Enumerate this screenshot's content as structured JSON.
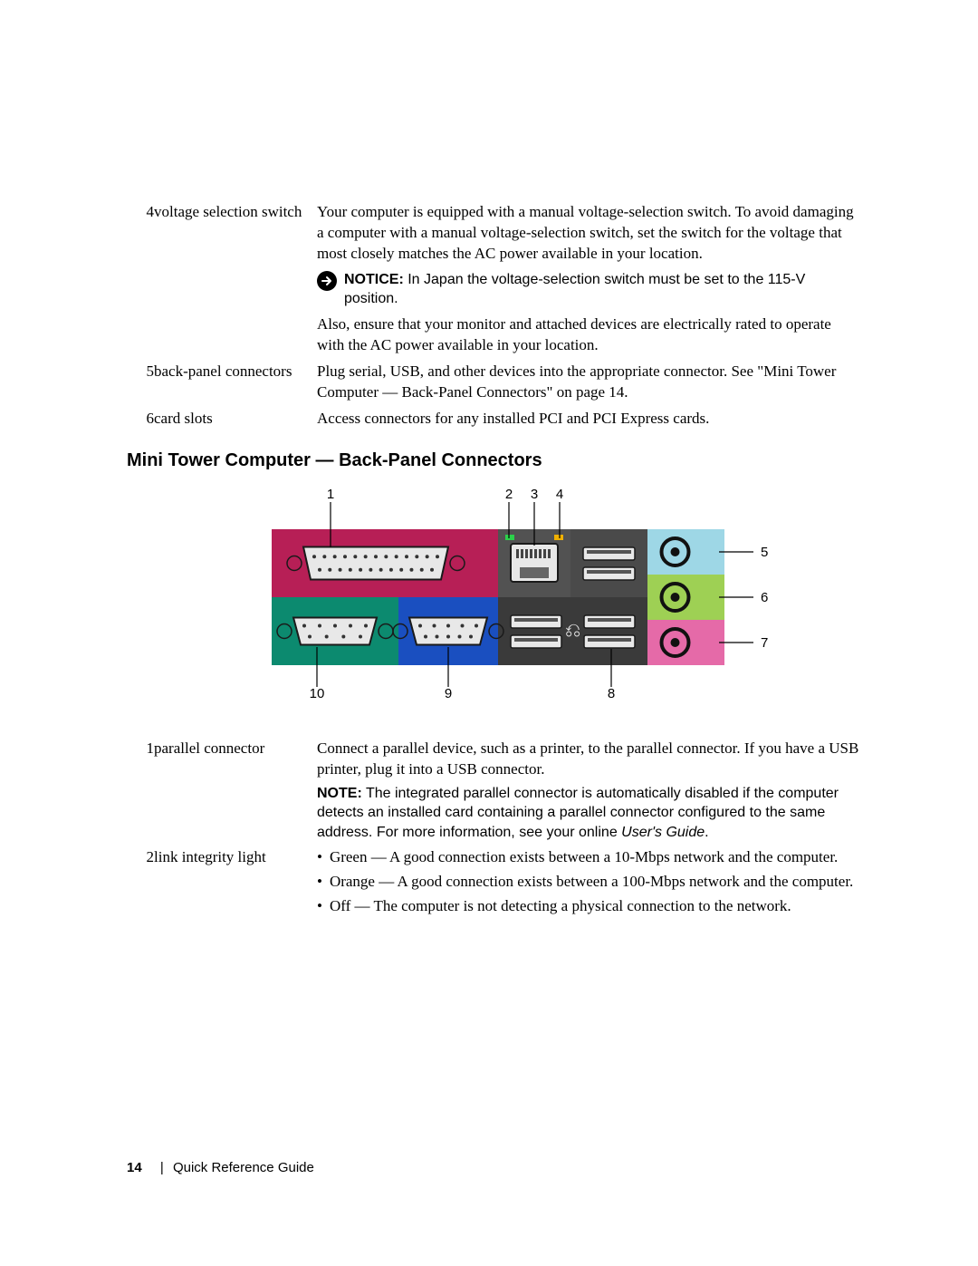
{
  "defs_top": [
    {
      "num": "4",
      "term": "voltage selection switch",
      "desc1": "Your computer is equipped with a manual voltage-selection switch. To avoid damaging a computer with a manual voltage-selection switch, set the switch for the voltage that most closely matches the AC power available in your location.",
      "notice_label": "NOTICE:",
      "notice_text": "In Japan the voltage-selection switch must be set to the 115-V position.",
      "desc2": "Also, ensure that your monitor and attached devices are electrically rated to operate with the AC power available in your location."
    },
    {
      "num": "5",
      "term": "back-panel connectors",
      "desc1": "Plug serial, USB, and other devices into the appropriate connector. See \"Mini Tower Computer — Back-Panel Connectors\" on page 14."
    },
    {
      "num": "6",
      "term": "card slots",
      "desc1": "Access connectors for any installed PCI and PCI Express cards."
    }
  ],
  "section_title": "Mini Tower Computer — Back-Panel Connectors",
  "diagram": {
    "callouts_top": [
      "1",
      "2",
      "3",
      "4"
    ],
    "callouts_right": [
      "5",
      "6",
      "7"
    ],
    "callouts_bottom": [
      "10",
      "9",
      "8"
    ],
    "panels": {
      "parallel": {
        "bg": "#b71f56",
        "label": "parallel"
      },
      "network": {
        "bg": "#525252"
      },
      "usb_left": {
        "bg": "#3a3a3a"
      },
      "usb_right": {
        "bg": "#3a3a3a"
      },
      "line_in": {
        "bg": "#9ed7e6"
      },
      "line_out": {
        "bg": "#9ed054"
      },
      "mic": {
        "bg": "#e56aa8"
      },
      "serial": {
        "bg": "#0c8a6f"
      },
      "vga": {
        "bg": "#1a4fc0"
      }
    },
    "port_body": "#e8e8e8",
    "port_stroke": "#1a1a1a",
    "pin_color": "#333333",
    "audio_ring": "#111111",
    "leader": "#000000"
  },
  "defs_bottom": {
    "r1": {
      "num": "1",
      "term": "parallel connector",
      "desc": "Connect a parallel device, such as a printer, to the parallel connector. If you have a USB printer, plug it into a USB connector.",
      "note_label": "NOTE:",
      "note_text_a": "The integrated parallel connector is automatically disabled if the computer detects an installed card containing a parallel connector configured to the same address. For more information, see your online ",
      "note_text_b": "User's Guide",
      "note_text_c": "."
    },
    "r2": {
      "num": "2",
      "term": "link integrity light",
      "b1": "Green — A good connection exists between a 10-Mbps network and the computer.",
      "b2": "Orange — A good connection exists between a 100-Mbps network and the computer.",
      "b3": "Off — The computer is not detecting a physical connection to the network."
    }
  },
  "footer": {
    "page": "14",
    "title": "Quick Reference Guide"
  }
}
